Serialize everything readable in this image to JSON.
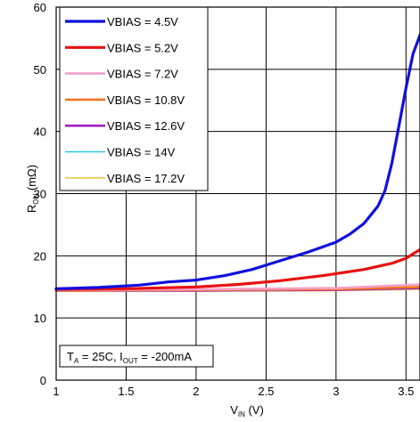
{
  "chart_data": {
    "type": "line",
    "xlabel_main": "V",
    "xlabel_sub": "IN",
    "xlabel_rest": " (V)",
    "ylabel_main": "R",
    "ylabel_sub": "ON",
    "ylabel_rest": " (mΩ)",
    "xlim": [
      1,
      3.6
    ],
    "ylim": [
      0,
      60
    ],
    "x_ticks": [
      1,
      1.5,
      2,
      2.5,
      3,
      3.5
    ],
    "x_tick_labels": [
      "1",
      "1.5",
      "2",
      "2.5",
      "3",
      "3.5"
    ],
    "y_ticks": [
      0,
      10,
      20,
      30,
      40,
      50,
      60
    ],
    "y_tick_labels": [
      "0",
      "10",
      "20",
      "30",
      "40",
      "50",
      "60"
    ],
    "grid": true,
    "legend_position": "top-left",
    "annotation": {
      "t": "T",
      "t_sub": "A",
      "mid": " = 25C, I",
      "i_sub": "OUT",
      "end": " = -200mA"
    },
    "series": [
      {
        "name": "VBIAS = 4.5V",
        "color": "#1010e0",
        "x": [
          1.0,
          1.3,
          1.6,
          1.8,
          2.0,
          2.2,
          2.4,
          2.6,
          2.8,
          3.0,
          3.1,
          3.2,
          3.3,
          3.35,
          3.4,
          3.45,
          3.5,
          3.55,
          3.6
        ],
        "y": [
          14.7,
          14.9,
          15.3,
          15.8,
          16.1,
          16.8,
          17.8,
          19.2,
          20.6,
          22.2,
          23.5,
          25.2,
          28.0,
          30.5,
          35.0,
          41.0,
          47.0,
          52.5,
          55.5
        ]
      },
      {
        "name": "VBIAS = 5.2V",
        "color": "#e81010",
        "x": [
          1.0,
          1.5,
          2.0,
          2.3,
          2.6,
          2.9,
          3.2,
          3.4,
          3.5,
          3.6
        ],
        "y": [
          14.6,
          14.7,
          15.0,
          15.4,
          16.0,
          16.8,
          17.8,
          18.8,
          19.6,
          21.0
        ]
      },
      {
        "name": "VBIAS = 7.2V",
        "color": "#f4a0c8",
        "x": [
          1.0,
          2.0,
          3.0,
          3.6
        ],
        "y": [
          14.5,
          14.6,
          14.8,
          15.4
        ]
      },
      {
        "name": "VBIAS = 10.8V",
        "color": "#f07820",
        "x": [
          1.0,
          2.0,
          3.0,
          3.6
        ],
        "y": [
          14.4,
          14.5,
          14.6,
          15.0
        ]
      },
      {
        "name": "VBIAS = 12.6V",
        "color": "#a020c0",
        "x": [
          1.0,
          2.0,
          3.0,
          3.6
        ],
        "y": [
          14.4,
          14.4,
          14.5,
          14.8
        ]
      },
      {
        "name": "VBIAS = 14V",
        "color": "#30c8e8",
        "x": [
          1.0,
          2.0,
          3.0,
          3.6
        ],
        "y": [
          14.3,
          14.4,
          14.5,
          14.7
        ]
      },
      {
        "name": "VBIAS = 17.2V",
        "color": "#f0c020",
        "x": [
          1.0,
          2.0,
          3.0,
          3.6
        ],
        "y": [
          14.3,
          14.3,
          14.4,
          14.6
        ]
      }
    ]
  }
}
